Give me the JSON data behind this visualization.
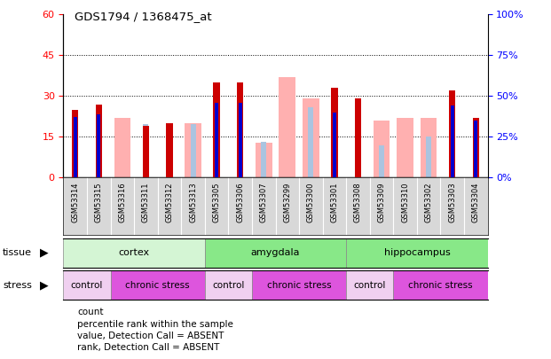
{
  "title": "GDS1794 / 1368475_at",
  "samples": [
    "GSM53314",
    "GSM53315",
    "GSM53316",
    "GSM53311",
    "GSM53312",
    "GSM53313",
    "GSM53305",
    "GSM53306",
    "GSM53307",
    "GSM53299",
    "GSM53300",
    "GSM53301",
    "GSM53308",
    "GSM53309",
    "GSM53310",
    "GSM53302",
    "GSM53303",
    "GSM53304"
  ],
  "count_red": [
    25,
    27,
    0,
    19,
    20,
    0,
    35,
    35,
    0,
    0,
    0,
    33,
    29,
    0,
    0,
    0,
    32,
    22
  ],
  "rank_blue_pct": [
    37,
    39,
    0,
    0,
    0,
    0,
    46,
    46,
    0,
    0,
    0,
    40,
    0,
    0,
    0,
    0,
    44,
    35
  ],
  "value_pink": [
    0,
    0,
    22,
    0,
    0,
    20,
    0,
    0,
    13,
    37,
    29,
    0,
    0,
    21,
    22,
    22,
    0,
    0
  ],
  "rank_lightblue_pct": [
    0,
    0,
    0,
    33,
    33,
    33,
    0,
    0,
    22,
    0,
    43,
    0,
    0,
    20,
    0,
    25,
    0,
    0
  ],
  "tissues": [
    {
      "label": "cortex",
      "start": 0,
      "end": 6,
      "color": "#d4f5d4"
    },
    {
      "label": "amygdala",
      "start": 6,
      "end": 12,
      "color": "#88e888"
    },
    {
      "label": "hippocampus",
      "start": 12,
      "end": 18,
      "color": "#88e888"
    }
  ],
  "stress": [
    {
      "label": "control",
      "start": 0,
      "end": 2,
      "color": "#f0d0f0"
    },
    {
      "label": "chronic stress",
      "start": 2,
      "end": 6,
      "color": "#dd55dd"
    },
    {
      "label": "control",
      "start": 6,
      "end": 8,
      "color": "#f0d0f0"
    },
    {
      "label": "chronic stress",
      "start": 8,
      "end": 12,
      "color": "#dd55dd"
    },
    {
      "label": "control",
      "start": 12,
      "end": 14,
      "color": "#f0d0f0"
    },
    {
      "label": "chronic stress",
      "start": 14,
      "end": 18,
      "color": "#dd55dd"
    }
  ],
  "ylim_left": [
    0,
    60
  ],
  "ylim_right": [
    0,
    100
  ],
  "yticks_left": [
    0,
    15,
    30,
    45,
    60
  ],
  "yticks_right": [
    0,
    25,
    50,
    75,
    100
  ],
  "color_red": "#cc0000",
  "color_blue": "#0000cc",
  "color_pink": "#ffb0b0",
  "color_lightblue": "#aac4e0",
  "bg_gray": "#d8d8d8"
}
